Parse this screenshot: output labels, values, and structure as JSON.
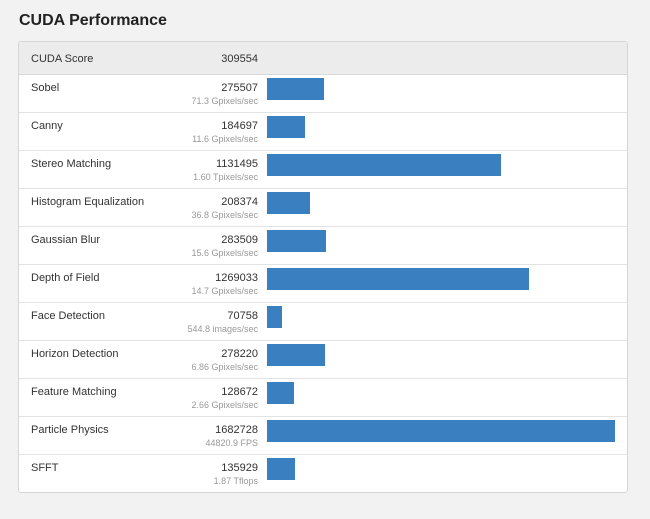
{
  "title": "CUDA Performance",
  "header": {
    "label": "CUDA Score",
    "score": "309554"
  },
  "colors": {
    "bar": "#3a7fbf"
  },
  "max_score": 1682728,
  "rows": [
    {
      "label": "Sobel",
      "score": "275507",
      "rate": "71.3 Gpixels/sec",
      "value": 275507
    },
    {
      "label": "Canny",
      "score": "184697",
      "rate": "11.6 Gpixels/sec",
      "value": 184697
    },
    {
      "label": "Stereo Matching",
      "score": "1131495",
      "rate": "1.60 Tpixels/sec",
      "value": 1131495
    },
    {
      "label": "Histogram Equalization",
      "score": "208374",
      "rate": "36.8 Gpixels/sec",
      "value": 208374
    },
    {
      "label": "Gaussian Blur",
      "score": "283509",
      "rate": "15.6 Gpixels/sec",
      "value": 283509
    },
    {
      "label": "Depth of Field",
      "score": "1269033",
      "rate": "14.7 Gpixels/sec",
      "value": 1269033
    },
    {
      "label": "Face Detection",
      "score": "70758",
      "rate": "544.8 images/sec",
      "value": 70758
    },
    {
      "label": "Horizon Detection",
      "score": "278220",
      "rate": "6.86 Gpixels/sec",
      "value": 278220
    },
    {
      "label": "Feature Matching",
      "score": "128672",
      "rate": "2.66 Gpixels/sec",
      "value": 128672
    },
    {
      "label": "Particle Physics",
      "score": "1682728",
      "rate": "44820.9 FPS",
      "value": 1682728
    },
    {
      "label": "SFFT",
      "score": "135929",
      "rate": "1.87 Tflops",
      "value": 135929
    }
  ]
}
